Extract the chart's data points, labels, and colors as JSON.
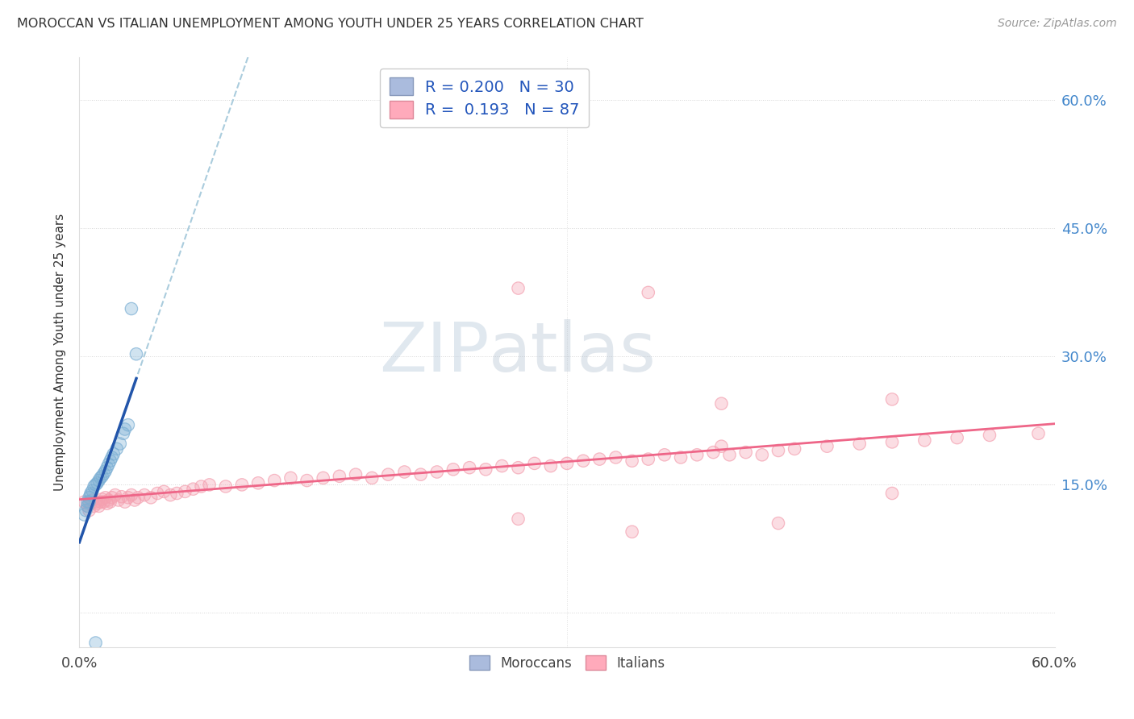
{
  "title": "MOROCCAN VS ITALIAN UNEMPLOYMENT AMONG YOUTH UNDER 25 YEARS CORRELATION CHART",
  "source": "Source: ZipAtlas.com",
  "ylabel": "Unemployment Among Youth under 25 years",
  "xlim": [
    0.0,
    0.6
  ],
  "ylim": [
    -0.04,
    0.65
  ],
  "moroccan_color": "#7BAFD4",
  "italian_color": "#F4A0B0",
  "moroccan_line_color": "#2255AA",
  "italian_line_color": "#EE6688",
  "dashed_line_color": "#AACCDD",
  "moroccan_R": 0.2,
  "moroccan_N": 30,
  "italian_R": 0.193,
  "italian_N": 87,
  "watermark_zip": "ZIP",
  "watermark_atlas": "atlas",
  "background_color": "#FFFFFF",
  "grid_color": "#CCCCCC",
  "moroccan_x": [
    0.003,
    0.004,
    0.005,
    0.005,
    0.006,
    0.006,
    0.007,
    0.007,
    0.008,
    0.009,
    0.01,
    0.011,
    0.012,
    0.013,
    0.014,
    0.015,
    0.016,
    0.017,
    0.018,
    0.019,
    0.02,
    0.021,
    0.023,
    0.025,
    0.027,
    0.028,
    0.03,
    0.032,
    0.035,
    0.01
  ],
  "moroccan_y": [
    0.115,
    0.12,
    0.125,
    0.13,
    0.13,
    0.135,
    0.138,
    0.14,
    0.143,
    0.148,
    0.15,
    0.152,
    0.155,
    0.158,
    0.16,
    0.163,
    0.166,
    0.17,
    0.174,
    0.178,
    0.182,
    0.186,
    0.192,
    0.198,
    0.21,
    0.215,
    0.22,
    0.356,
    0.303,
    -0.035
  ],
  "italian_x": [
    0.003,
    0.005,
    0.006,
    0.007,
    0.008,
    0.009,
    0.01,
    0.011,
    0.012,
    0.013,
    0.014,
    0.015,
    0.016,
    0.017,
    0.018,
    0.019,
    0.02,
    0.022,
    0.024,
    0.026,
    0.028,
    0.03,
    0.032,
    0.034,
    0.036,
    0.04,
    0.044,
    0.048,
    0.052,
    0.056,
    0.06,
    0.065,
    0.07,
    0.075,
    0.08,
    0.09,
    0.1,
    0.11,
    0.12,
    0.13,
    0.14,
    0.15,
    0.16,
    0.17,
    0.18,
    0.19,
    0.2,
    0.21,
    0.22,
    0.23,
    0.24,
    0.25,
    0.26,
    0.27,
    0.28,
    0.29,
    0.3,
    0.31,
    0.32,
    0.33,
    0.34,
    0.35,
    0.36,
    0.37,
    0.38,
    0.39,
    0.4,
    0.41,
    0.42,
    0.43,
    0.44,
    0.46,
    0.48,
    0.5,
    0.52,
    0.54,
    0.56,
    0.59,
    0.35,
    0.27,
    0.395,
    0.5,
    0.43,
    0.34,
    0.27,
    0.395,
    0.5
  ],
  "italian_y": [
    0.13,
    0.125,
    0.12,
    0.128,
    0.132,
    0.125,
    0.13,
    0.128,
    0.125,
    0.13,
    0.133,
    0.13,
    0.135,
    0.128,
    0.132,
    0.13,
    0.135,
    0.138,
    0.132,
    0.136,
    0.13,
    0.135,
    0.138,
    0.132,
    0.135,
    0.138,
    0.135,
    0.14,
    0.142,
    0.138,
    0.14,
    0.142,
    0.145,
    0.148,
    0.15,
    0.148,
    0.15,
    0.152,
    0.155,
    0.158,
    0.155,
    0.158,
    0.16,
    0.162,
    0.158,
    0.162,
    0.165,
    0.162,
    0.165,
    0.168,
    0.17,
    0.168,
    0.172,
    0.17,
    0.175,
    0.172,
    0.175,
    0.178,
    0.18,
    0.182,
    0.178,
    0.18,
    0.185,
    0.182,
    0.185,
    0.188,
    0.185,
    0.188,
    0.185,
    0.19,
    0.192,
    0.195,
    0.198,
    0.2,
    0.202,
    0.205,
    0.208,
    0.21,
    0.375,
    0.38,
    0.195,
    0.14,
    0.105,
    0.095,
    0.11,
    0.245,
    0.25
  ]
}
